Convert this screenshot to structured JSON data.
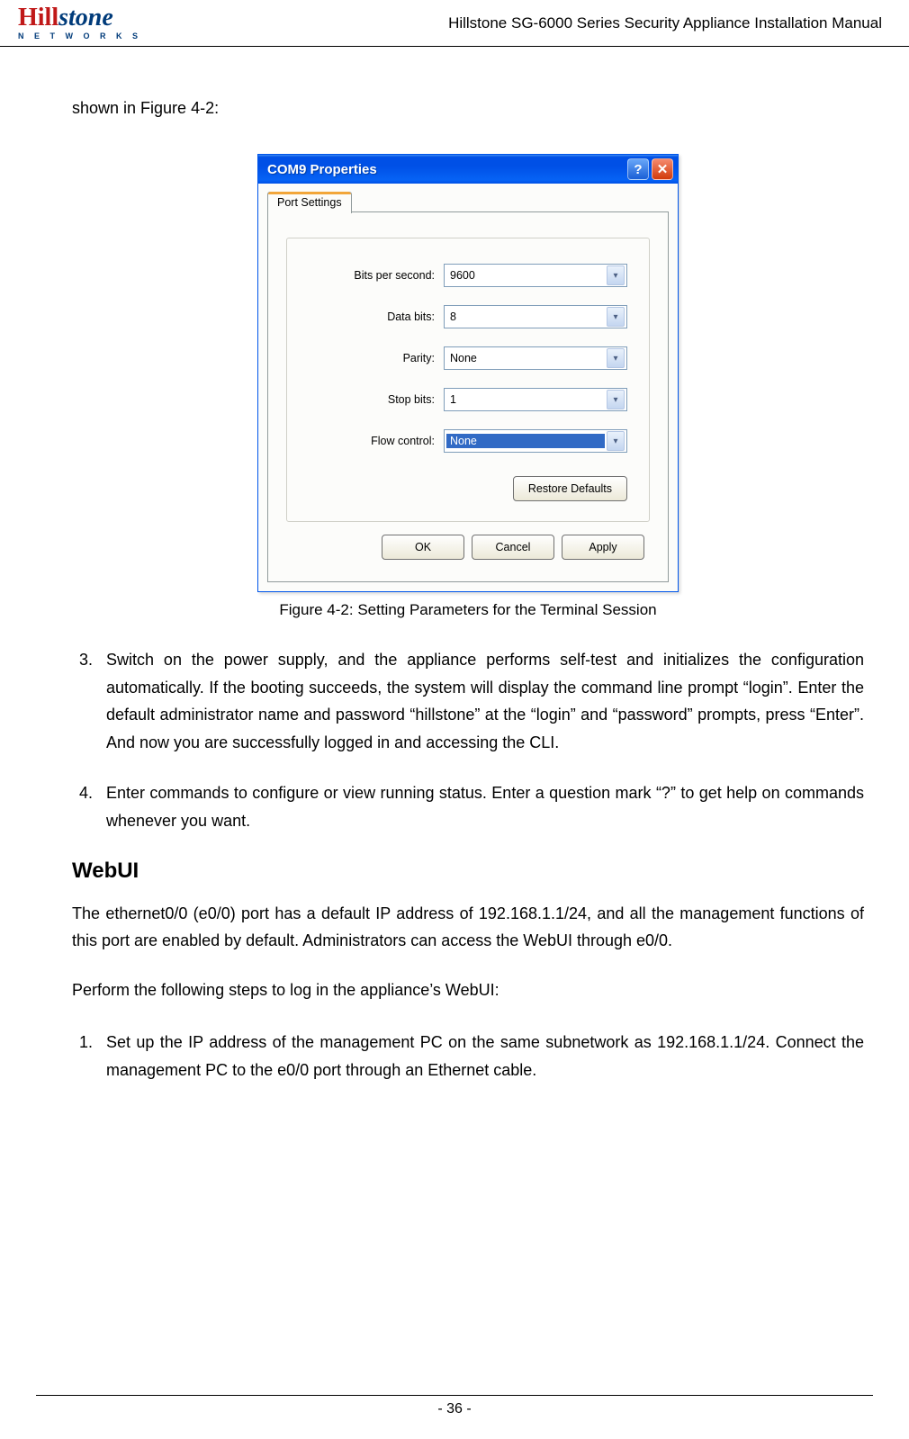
{
  "header": {
    "logo_main_1": "Hill",
    "logo_main_2": "stone",
    "logo_sub": "N E T W O R K S",
    "doc_title": "Hillstone SG-6000 Series Security Appliance Installation Manual"
  },
  "intro": "shown in Figure 4-2:",
  "dialog": {
    "title": "COM9 Properties",
    "tab_label": "Port Settings",
    "fields": [
      {
        "label": "Bits per second:",
        "value": "9600",
        "selected": false
      },
      {
        "label": "Data bits:",
        "value": "8",
        "selected": false
      },
      {
        "label": "Parity:",
        "value": "None",
        "selected": false
      },
      {
        "label": "Stop bits:",
        "value": "1",
        "selected": false
      },
      {
        "label": "Flow control:",
        "value": "None",
        "selected": true
      }
    ],
    "restore_btn": "Restore Defaults",
    "ok_btn": "OK",
    "cancel_btn": "Cancel",
    "apply_btn": "Apply",
    "colors": {
      "titlebar_gradient_top": "#3f8cf3",
      "titlebar_gradient_bottom": "#0050e6",
      "close_btn_bg": "#d13b0b",
      "help_btn_bg": "#1a5fd6",
      "tab_highlight": "#f2a63a",
      "combo_border": "#7f9db9",
      "selection_bg": "#316ac5",
      "body_bg": "#fcfcfa",
      "button_border": "#707070"
    }
  },
  "caption": "Figure 4-2: Setting Parameters for the Terminal Session",
  "list_items": {
    "n3": "3.",
    "t3": "Switch on the power supply, and the appliance performs self-test and initializes the configuration automatically. If the booting succeeds, the system will display the command line prompt “login”. Enter the default administrator name and password “hillstone” at the “login” and “password” prompts, press “Enter”. And now you are successfully logged in and accessing the CLI.",
    "n4": "4.",
    "t4": "Enter commands to configure or view running status. Enter a question mark “?” to get help on commands whenever you want."
  },
  "section_heading": "WebUI",
  "para1": "The ethernet0/0 (e0/0) port has a default IP address of 192.168.1.1/24, and all the management functions of this port are enabled by default. Administrators can access the WebUI through e0/0.",
  "para2": "Perform the following steps to log in the appliance’s WebUI:",
  "list2": {
    "n1": "1.",
    "t1": "Set up the IP address of the management PC on the same subnetwork as 192.168.1.1/24. Connect the management PC to the e0/0 port through an Ethernet cable."
  },
  "page_number": "- 36 -"
}
